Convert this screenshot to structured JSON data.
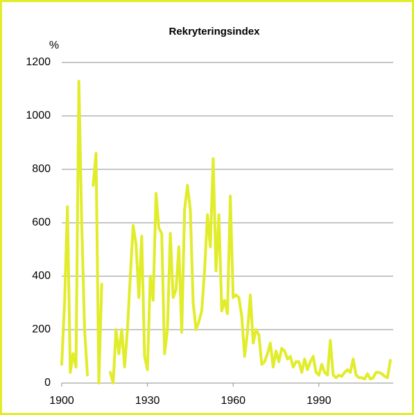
{
  "chart_data": {
    "type": "line",
    "title": "Rekryteringsindex",
    "ylabel": "%",
    "x": [
      1900,
      1901,
      1902,
      1903,
      1904,
      1905,
      1906,
      1907,
      1908,
      1909,
      1910,
      1911,
      1912,
      1913,
      1914,
      1915,
      1916,
      1917,
      1918,
      1919,
      1920,
      1921,
      1922,
      1923,
      1924,
      1925,
      1926,
      1927,
      1928,
      1929,
      1930,
      1931,
      1932,
      1933,
      1934,
      1935,
      1936,
      1937,
      1938,
      1939,
      1940,
      1941,
      1942,
      1943,
      1944,
      1945,
      1946,
      1947,
      1948,
      1949,
      1950,
      1951,
      1952,
      1953,
      1954,
      1955,
      1956,
      1957,
      1958,
      1959,
      1960,
      1961,
      1962,
      1963,
      1964,
      1965,
      1966,
      1967,
      1968,
      1969,
      1970,
      1971,
      1972,
      1973,
      1974,
      1975,
      1976,
      1977,
      1978,
      1979,
      1980,
      1981,
      1982,
      1983,
      1984,
      1985,
      1986,
      1987,
      1988,
      1989,
      1990,
      1991,
      1992,
      1993,
      1994,
      1995,
      1996,
      1997,
      1998,
      1999,
      2000,
      2001,
      2002,
      2003,
      2004,
      2005,
      2006,
      2007,
      2008,
      2009,
      2010,
      2011,
      2012,
      2013,
      2014,
      2015
    ],
    "series": [
      {
        "color": "#e1ec2a",
        "values": [
          70,
          300,
          660,
          40,
          110,
          60,
          1130,
          600,
          200,
          30,
          null,
          740,
          860,
          0,
          370,
          null,
          null,
          40,
          0,
          200,
          110,
          200,
          60,
          200,
          400,
          590,
          520,
          320,
          550,
          100,
          50,
          400,
          310,
          710,
          580,
          560,
          110,
          200,
          560,
          320,
          350,
          510,
          190,
          650,
          740,
          650,
          300,
          200,
          230,
          270,
          420,
          630,
          510,
          840,
          420,
          630,
          270,
          310,
          260,
          700,
          320,
          330,
          320,
          250,
          100,
          190,
          330,
          150,
          200,
          180,
          70,
          80,
          110,
          150,
          60,
          120,
          80,
          130,
          120,
          90,
          100,
          60,
          80,
          80,
          40,
          90,
          50,
          80,
          100,
          40,
          30,
          70,
          40,
          30,
          160,
          30,
          20,
          30,
          25,
          40,
          50,
          40,
          90,
          30,
          20,
          20,
          15,
          35,
          15,
          20,
          40,
          40,
          35,
          25,
          20,
          85
        ]
      }
    ],
    "xlim": [
      1900,
      2016
    ],
    "xticks": [
      1900,
      1930,
      1960,
      1990
    ],
    "ylim": [
      0,
      1200
    ],
    "yticks": [
      0,
      200,
      400,
      600,
      800,
      1000,
      1200
    ],
    "grid": true
  }
}
